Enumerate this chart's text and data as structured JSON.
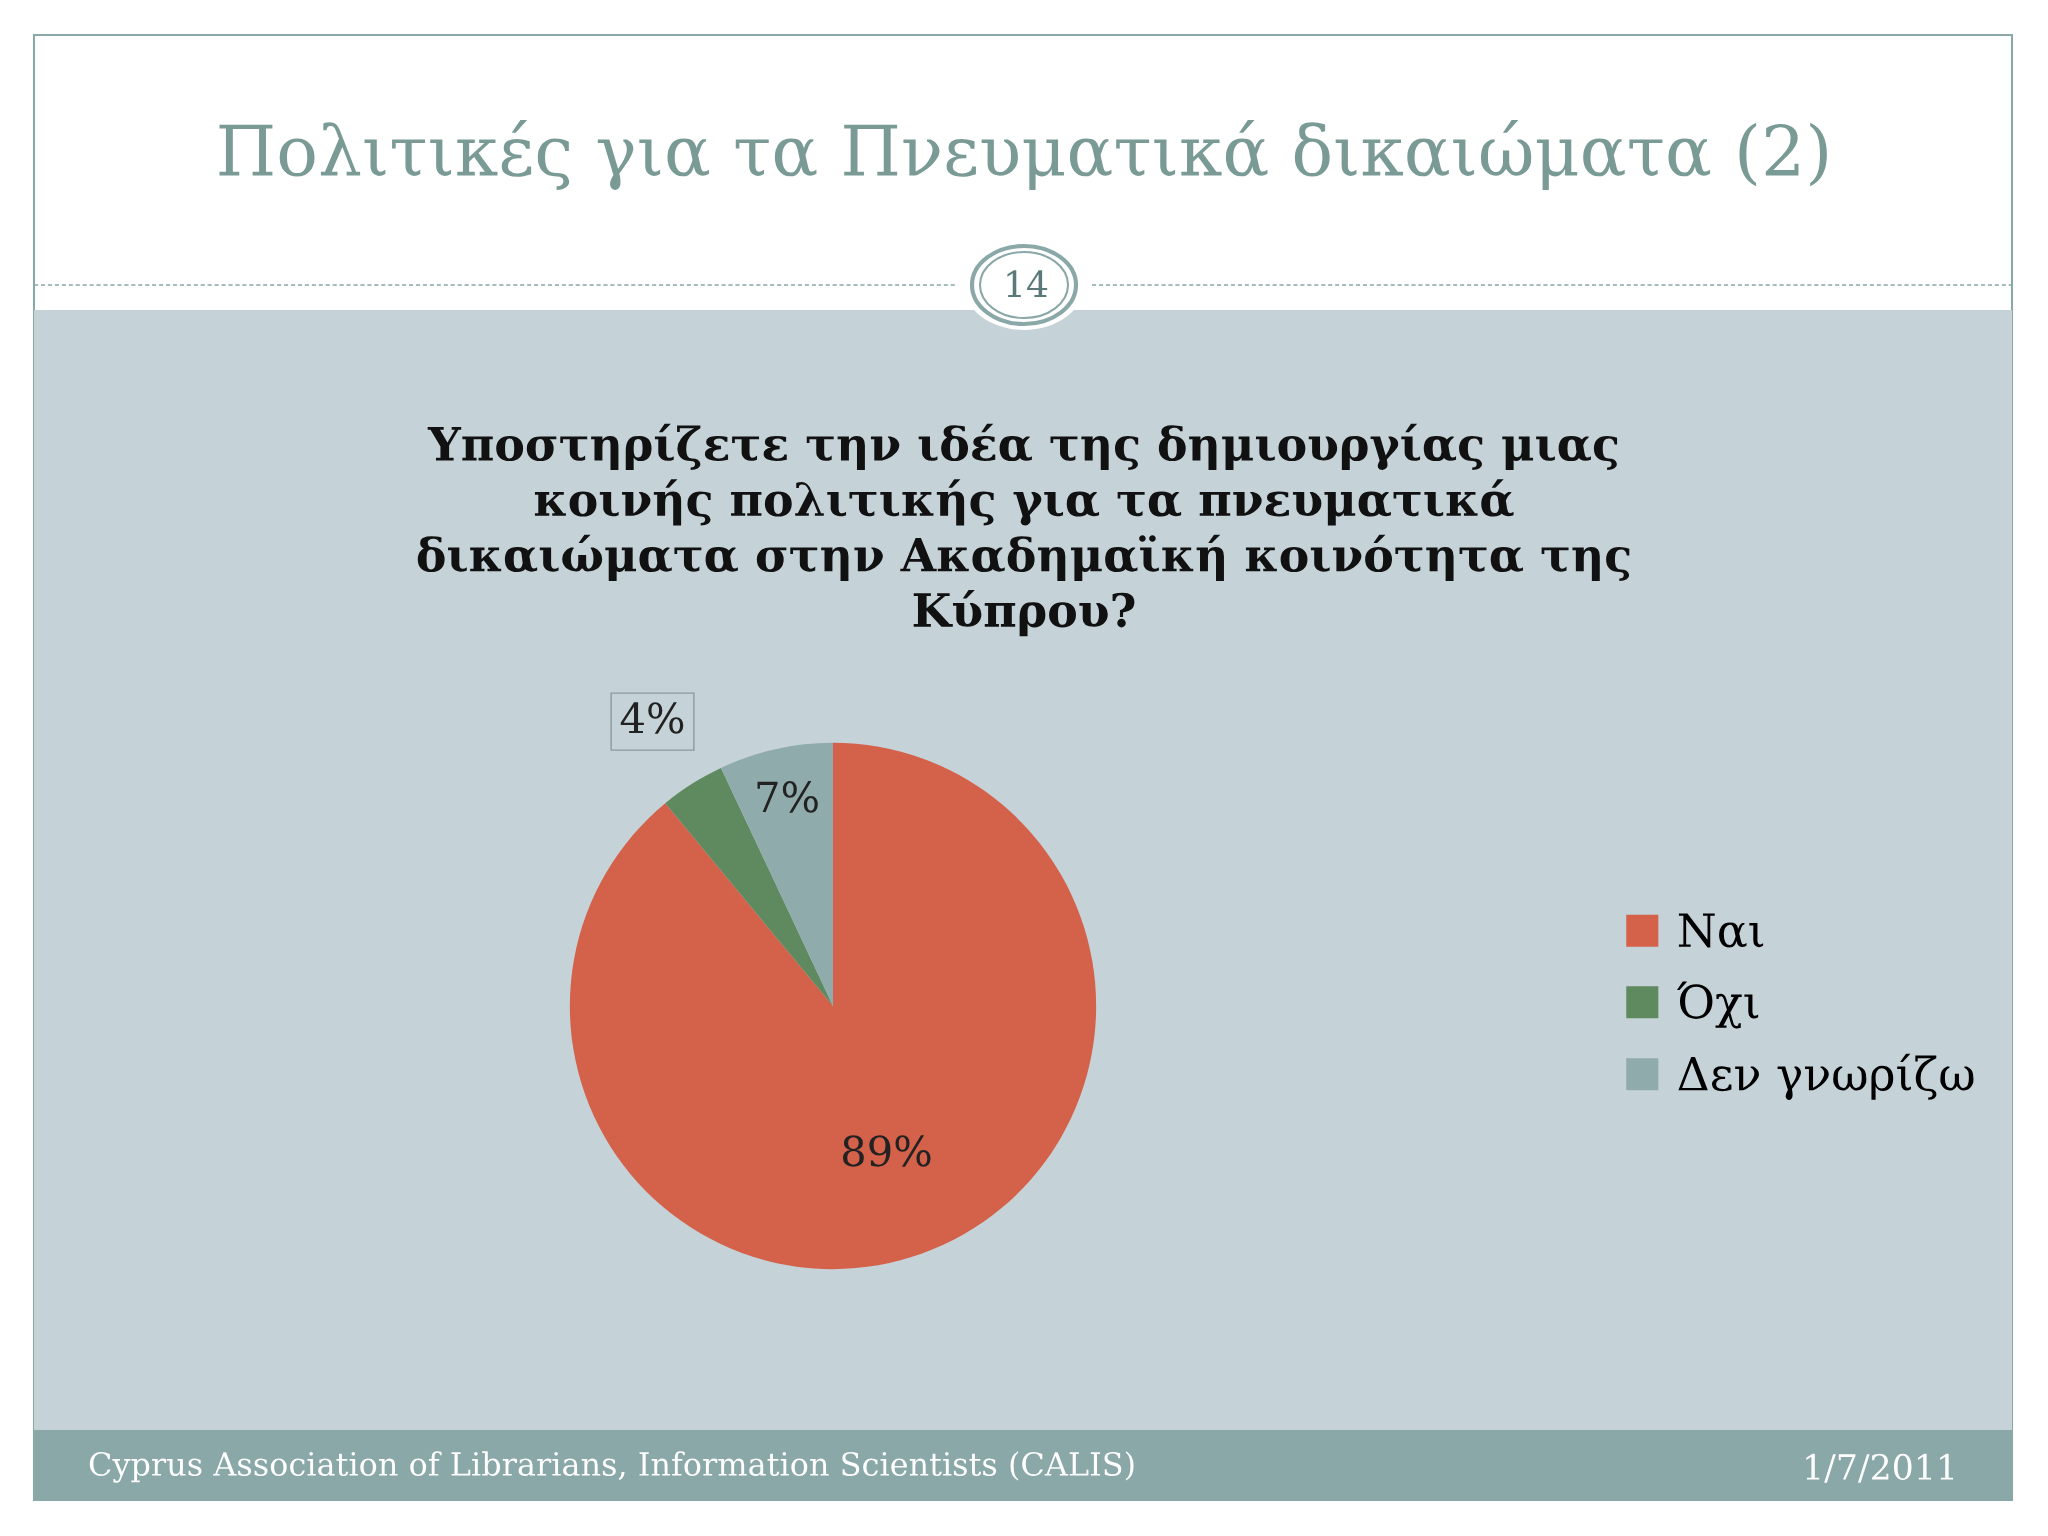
{
  "chart_data": {
    "type": "pie",
    "title": "Πολιτικές για τα Πνευματικά δικαιώματα (2)",
    "subtitle": "Υποστηρίζετε την ιδέα της δημιουργίας μιας\nκοινής πολιτικής για τα πνευματικά\nδικαιώματα στην Ακαδημαϊκή κοινότητα της\nΚύπρου?",
    "categories": [
      "Ναι",
      "Όχι",
      "Δεν γνωρίζω"
    ],
    "values": [
      89,
      4,
      7
    ],
    "colors": [
      "#d4614a",
      "#5f8a5f",
      "#8fabab"
    ],
    "value_labels": [
      "89%",
      "4%",
      "7%"
    ],
    "legend": "right",
    "annotations": [
      "14",
      "Cyprus Association of Librarians, Information Scientists (CALIS)",
      "1/7/2011"
    ]
  }
}
